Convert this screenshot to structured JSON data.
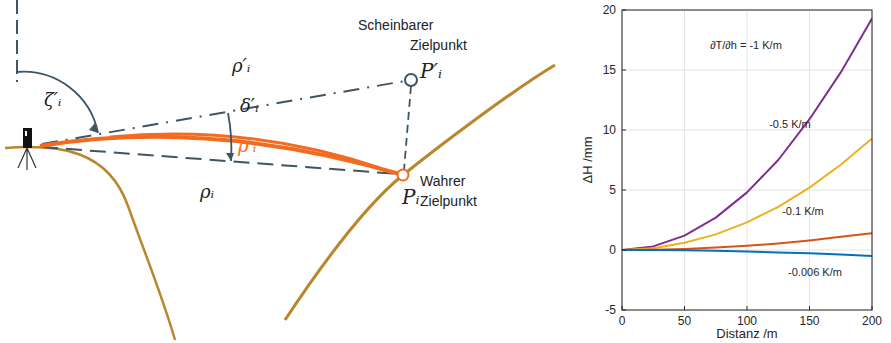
{
  "chart_data": {
    "type": "line",
    "x_label": "Distanz /m",
    "y_label": "ΔH /mm",
    "x": [
      0,
      25,
      50,
      75,
      100,
      125,
      150,
      175,
      200
    ],
    "series": [
      {
        "name": "∂T/∂h = -1 K/m",
        "color": "#7e2f8e",
        "values": [
          0,
          0.3,
          1.2,
          2.7,
          4.8,
          7.5,
          10.9,
          14.8,
          19.3
        ]
      },
      {
        "name": "-0.5 K/m",
        "color": "#edb120",
        "values": [
          0,
          0.15,
          0.6,
          1.3,
          2.3,
          3.6,
          5.2,
          7.1,
          9.3
        ]
      },
      {
        "name": "-0.1 K/m",
        "color": "#d95319",
        "values": [
          0,
          0.02,
          0.09,
          0.2,
          0.35,
          0.55,
          0.8,
          1.1,
          1.4
        ]
      },
      {
        "name": "-0.006 K/m",
        "color": "#0072bd",
        "values": [
          0,
          -0.01,
          -0.03,
          -0.07,
          -0.13,
          -0.2,
          -0.28,
          -0.38,
          -0.5
        ]
      }
    ],
    "xlim": [
      0,
      200
    ],
    "xticks": [
      0,
      50,
      100,
      150,
      200
    ],
    "ylim": [
      -5,
      20
    ],
    "yticks": [
      -5,
      0,
      5,
      10,
      15,
      20
    ],
    "grid": true
  },
  "diagram": {
    "zenith_angle": "ζ′ᵢ",
    "refraction_angle": "δ′ᵢ",
    "apparent_distance": "ρ′ᵢ",
    "curved_path": "ρ′ᵢ",
    "true_distance": "ρᵢ",
    "apparent_point": "P′ᵢ",
    "apparent_caption": "Scheinbarer Zielpunkt",
    "true_point": "Pᵢ",
    "true_caption": "Wahrer Zielpunkt"
  }
}
